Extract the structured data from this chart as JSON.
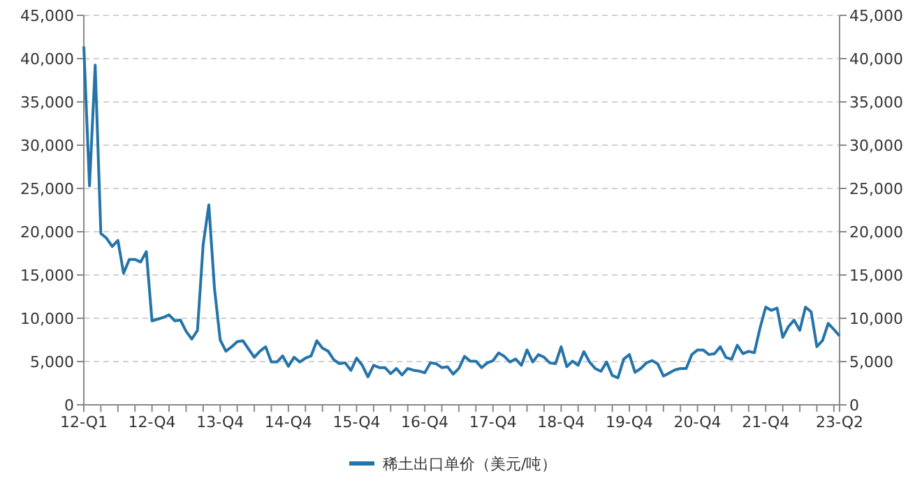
{
  "chart_data": {
    "type": "line",
    "categories": [
      "12-Q1",
      null,
      null,
      null,
      null,
      null,
      null,
      null,
      null,
      null,
      null,
      null,
      "12-Q4",
      null,
      null,
      null,
      null,
      null,
      null,
      null,
      null,
      null,
      null,
      null,
      "13-Q4",
      null,
      null,
      null,
      null,
      null,
      null,
      null,
      null,
      null,
      null,
      null,
      "14-Q4",
      null,
      null,
      null,
      null,
      null,
      null,
      null,
      null,
      null,
      null,
      null,
      "15-Q4",
      null,
      null,
      null,
      null,
      null,
      null,
      null,
      null,
      null,
      null,
      null,
      "16-Q4",
      null,
      null,
      null,
      null,
      null,
      null,
      null,
      null,
      null,
      null,
      null,
      "17-Q4",
      null,
      null,
      null,
      null,
      null,
      null,
      null,
      null,
      null,
      null,
      null,
      "18-Q4",
      null,
      null,
      null,
      null,
      null,
      null,
      null,
      null,
      null,
      null,
      null,
      "19-Q4",
      null,
      null,
      null,
      null,
      null,
      null,
      null,
      null,
      null,
      null,
      null,
      "20-Q4",
      null,
      null,
      null,
      null,
      null,
      null,
      null,
      null,
      null,
      null,
      null,
      "21-Q4",
      null,
      null,
      null,
      null,
      null,
      null,
      null,
      null,
      null,
      null,
      null,
      null,
      "23-Q2"
    ],
    "series": [
      {
        "name": "稀土出口单价（美元/吨）",
        "color": "#2574a9",
        "values": [
          41400,
          25300,
          39250,
          19800,
          19250,
          18300,
          19000,
          15200,
          16800,
          16800,
          16500,
          17700,
          9700,
          9900,
          10100,
          10400,
          9700,
          9800,
          8500,
          7600,
          8600,
          18500,
          23100,
          13400,
          7500,
          6200,
          6700,
          7300,
          7400,
          6450,
          5500,
          6200,
          6700,
          4950,
          4950,
          5650,
          4450,
          5500,
          4950,
          5400,
          5650,
          7400,
          6550,
          6200,
          5200,
          4750,
          4850,
          3980,
          5400,
          4570,
          3230,
          4570,
          4300,
          4300,
          3600,
          4200,
          3450,
          4200,
          4000,
          3900,
          3700,
          4850,
          4750,
          4300,
          4400,
          3550,
          4200,
          5600,
          5050,
          5050,
          4300,
          4850,
          5100,
          6000,
          5600,
          4950,
          5300,
          4570,
          6350,
          4950,
          5800,
          5500,
          4850,
          4750,
          6700,
          4400,
          5050,
          4570,
          6150,
          4950,
          4190,
          3870,
          4950,
          3390,
          3120,
          5270,
          5810,
          3760,
          4190,
          4840,
          5110,
          4730,
          3330,
          3660,
          4030,
          4190,
          4190,
          5810,
          6340,
          6340,
          5810,
          5910,
          6720,
          5480,
          5270,
          6880,
          5910,
          6180,
          6020,
          8870,
          11290,
          10910,
          11180,
          7800,
          9030,
          9790,
          8600,
          11290,
          10750,
          6720,
          7420,
          9410,
          8710,
          7960
        ]
      }
    ],
    "ylim": [
      0,
      45000
    ],
    "yticks": [
      0,
      {
        "value": 5000,
        "label": "5,000"
      },
      {
        "value": 10000,
        "label": "10,000"
      },
      {
        "value": 15000,
        "label": "15,000"
      },
      {
        "value": 20000,
        "label": "20,000"
      },
      {
        "value": 25000,
        "label": "25,000"
      },
      {
        "value": 30000,
        "label": "30,000"
      },
      {
        "value": 35000,
        "label": "35,000"
      },
      {
        "value": 40000,
        "label": "40,000"
      },
      {
        "value": 45000,
        "label": "45,000"
      }
    ],
    "y2lim": [
      0,
      45000
    ],
    "y2ticks": [
      0,
      {
        "value": 5000,
        "label": "5,000"
      },
      {
        "value": 10000,
        "label": "10,000"
      },
      {
        "value": 15000,
        "label": "15,000"
      },
      {
        "value": 20000,
        "label": "20,000"
      },
      {
        "value": 25000,
        "label": "25,000"
      },
      {
        "value": 30000,
        "label": "30,000"
      },
      {
        "value": 35000,
        "label": "35,000"
      },
      {
        "value": 40000,
        "label": "40,000"
      },
      {
        "value": 45000,
        "label": "45,000"
      }
    ],
    "grid": "y",
    "legend": "bottom",
    "marker": "none",
    "line_style": "solid"
  }
}
